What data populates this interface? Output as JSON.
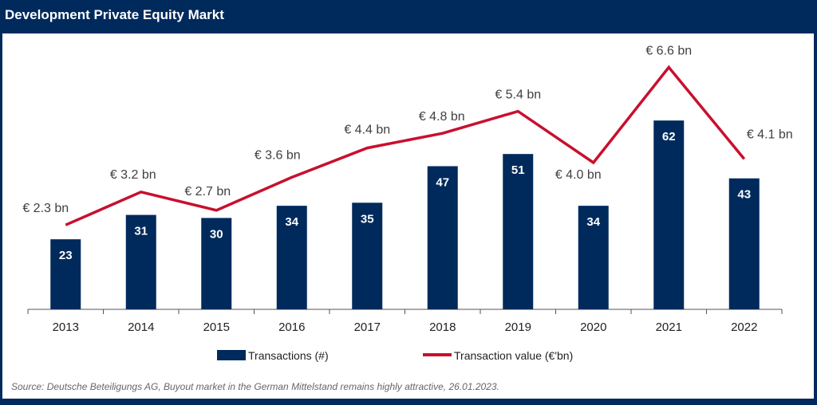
{
  "header": {
    "title": "Development Private Equity Markt"
  },
  "chart_data": {
    "type": "bar+line",
    "categories": [
      "2013",
      "2014",
      "2015",
      "2016",
      "2017",
      "2018",
      "2019",
      "2020",
      "2021",
      "2022"
    ],
    "series": [
      {
        "name": "Transactions (#)",
        "type": "bar",
        "color": "#002a5c",
        "values": [
          23,
          31,
          30,
          34,
          35,
          47,
          51,
          34,
          62,
          43
        ]
      },
      {
        "name": "Transaction value (€'bn)",
        "type": "line",
        "color": "#c8102e",
        "values": [
          2.3,
          3.2,
          2.7,
          3.6,
          4.4,
          4.8,
          5.4,
          4.0,
          6.6,
          4.1
        ],
        "labels": [
          "€ 2.3 bn",
          "€ 3.2 bn",
          "€ 2.7 bn",
          "€ 3.6 bn",
          "€ 4.4 bn",
          "€ 4.8 bn",
          "€ 5.4 bn",
          "€ 4.0 bn",
          "€ 6.6 bn",
          "€ 4.1 bn"
        ]
      }
    ],
    "legend": "bottom",
    "grid": false
  },
  "source": "Source: Deutsche Beteiligungs AG, Buyout market in the German Mittelstand remains highly attractive, 26.01.2023."
}
